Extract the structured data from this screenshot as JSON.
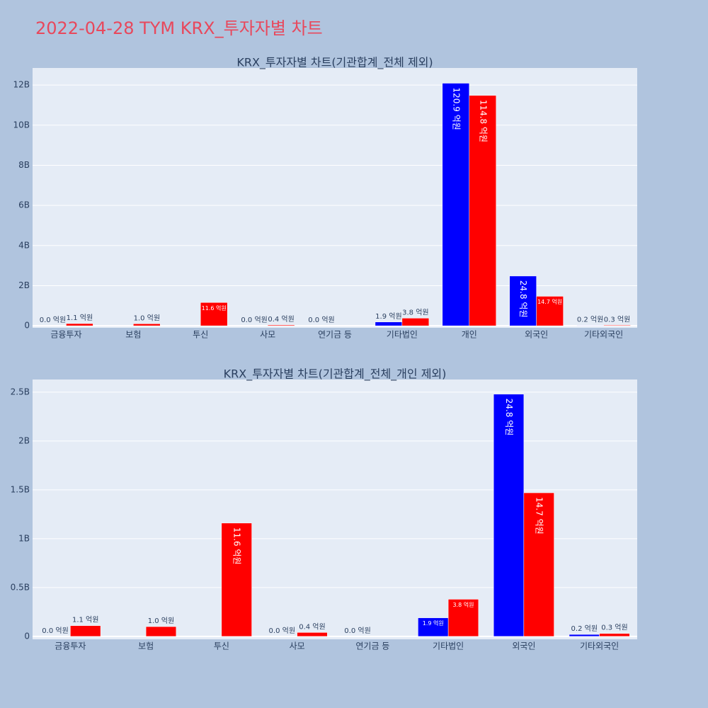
{
  "title": "2022-04-28 TYM KRX_투자자별 차트",
  "chart_data": [
    {
      "type": "bar",
      "title": "KRX_투자자별 차트(기관합계_전체 제외)",
      "categories": [
        "금융투자",
        "보험",
        "투신",
        "사모",
        "연기금 등",
        "기타법인",
        "개인",
        "외국인",
        "기타외국인"
      ],
      "series": [
        {
          "color": "#0000ff",
          "values": [
            0,
            null,
            null,
            0,
            0,
            190000000,
            12090000000,
            2480000000,
            20000000
          ],
          "value_labels": [
            "0.0 억원",
            null,
            null,
            "0.0 억원",
            "0.0 억원",
            "1.9 억원",
            "120.9 억원",
            "24.8 억원",
            "0.2 억원"
          ]
        },
        {
          "color": "#ff0000",
          "values": [
            110000000,
            100000000,
            1160000000,
            40000000,
            null,
            380000000,
            11480000000,
            1470000000,
            30000000
          ],
          "value_labels": [
            "1.1 억원",
            "1.0 억원",
            "11.6 억원",
            "0.4 억원",
            null,
            "3.8 억원",
            "114.8 억원",
            "14.7 억원",
            "0.3 억원"
          ]
        }
      ],
      "ylim": [
        -100000000,
        12850000000
      ],
      "yticks": [
        0,
        {
          "value": 2000000000,
          "label": "2B"
        },
        {
          "value": 4000000000,
          "label": "4B"
        },
        {
          "value": 6000000000,
          "label": "6B"
        },
        {
          "value": 8000000000,
          "label": "8B"
        },
        {
          "value": 10000000000,
          "label": "10B"
        },
        {
          "value": 12000000000,
          "label": "12B"
        }
      ],
      "grid": true
    },
    {
      "type": "bar",
      "title": "KRX_투자자별 차트(기관합계_전체_개인 제외)",
      "categories": [
        "금융투자",
        "보험",
        "투신",
        "사모",
        "연기금 등",
        "기타법인",
        "외국인",
        "기타외국인"
      ],
      "series": [
        {
          "color": "#0000ff",
          "values": [
            0,
            null,
            null,
            0,
            0,
            190000000,
            2480000000,
            20000000
          ],
          "value_labels": [
            "0.0 억원",
            null,
            null,
            "0.0 억원",
            "0.0 억원",
            "1.9 억원",
            "24.8 억원",
            "0.2 억원"
          ]
        },
        {
          "color": "#ff0000",
          "values": [
            110000000,
            100000000,
            1160000000,
            40000000,
            null,
            380000000,
            1470000000,
            30000000
          ],
          "value_labels": [
            "1.1 억원",
            "1.0 억원",
            "11.6 억원",
            "0.4 억원",
            null,
            "3.8 억원",
            "14.7 억원",
            "0.3 억원"
          ]
        }
      ],
      "ylim": [
        -30000000,
        2630000000
      ],
      "yticks": [
        0,
        {
          "value": 500000000,
          "label": "0.5B"
        },
        {
          "value": 1000000000,
          "label": "1B"
        },
        {
          "value": 1500000000,
          "label": "1.5B"
        },
        {
          "value": 2000000000,
          "label": "2B"
        },
        {
          "value": 2500000000,
          "label": "2.5B"
        }
      ],
      "grid": true
    }
  ]
}
